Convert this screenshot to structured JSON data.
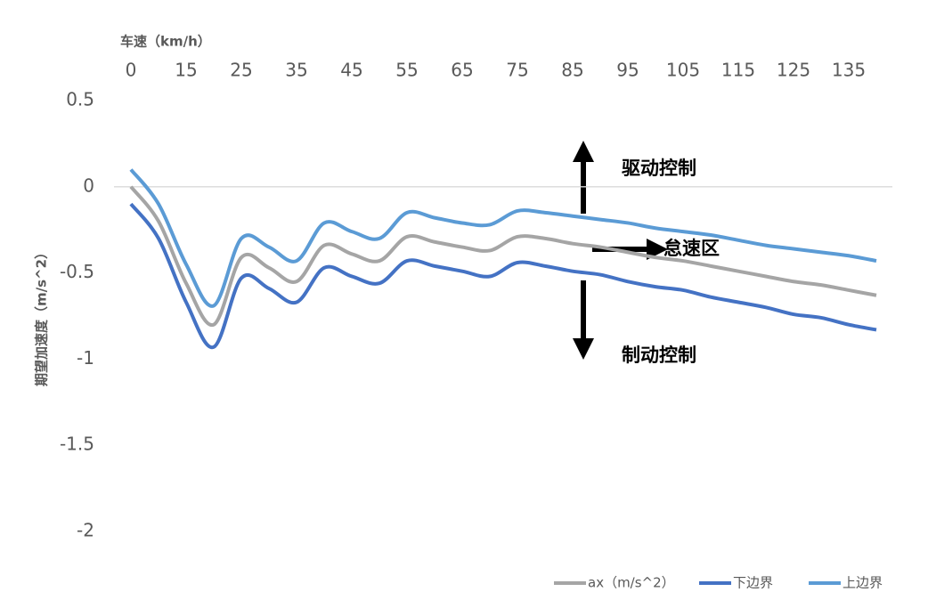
{
  "chart_data": {
    "type": "line",
    "x_label": "车速（km/h）",
    "y_label": "期望加速度（m/s^2）",
    "categories": [
      0,
      null,
      15,
      null,
      25,
      null,
      35,
      null,
      45,
      null,
      55,
      null,
      65,
      null,
      75,
      null,
      85,
      null,
      95,
      null,
      105,
      null,
      115,
      null,
      125,
      null,
      135,
      null
    ],
    "series": [
      {
        "name": "ax（m/s^2）",
        "color": "#a5a5a5",
        "values": [
          0,
          -0.2,
          -0.56,
          -0.8,
          -0.41,
          -0.47,
          -0.55,
          -0.34,
          -0.39,
          -0.43,
          -0.29,
          -0.32,
          -0.35,
          -0.37,
          -0.29,
          -0.3,
          -0.33,
          -0.35,
          -0.38,
          -0.41,
          -0.43,
          -0.46,
          -0.49,
          -0.52,
          -0.55,
          -0.57,
          -0.6,
          -0.63
        ]
      },
      {
        "name": "下边界",
        "color": "#4472c4",
        "values": [
          -0.1,
          -0.3,
          -0.67,
          -0.93,
          -0.53,
          -0.59,
          -0.67,
          -0.47,
          -0.52,
          -0.56,
          -0.43,
          -0.46,
          -0.49,
          -0.52,
          -0.44,
          -0.46,
          -0.49,
          -0.51,
          -0.55,
          -0.58,
          -0.6,
          -0.64,
          -0.67,
          -0.7,
          -0.74,
          -0.76,
          -0.8,
          -0.83
        ]
      },
      {
        "name": "上边界",
        "color": "#5b9bd5",
        "values": [
          0.1,
          -0.1,
          -0.45,
          -0.69,
          -0.3,
          -0.35,
          -0.43,
          -0.21,
          -0.26,
          -0.3,
          -0.15,
          -0.18,
          -0.21,
          -0.22,
          -0.14,
          -0.15,
          -0.17,
          -0.19,
          -0.21,
          -0.24,
          -0.26,
          -0.28,
          -0.31,
          -0.34,
          -0.36,
          -0.38,
          -0.4,
          -0.43
        ]
      }
    ],
    "ylim": [
      -2,
      0.5
    ],
    "yticks": [
      -2,
      -1.5,
      -1,
      -0.5,
      0,
      0.5
    ],
    "grid": false,
    "legend": "bottom-right",
    "annotations": [
      "驱动控制",
      "怠速区",
      "制动控制"
    ]
  }
}
